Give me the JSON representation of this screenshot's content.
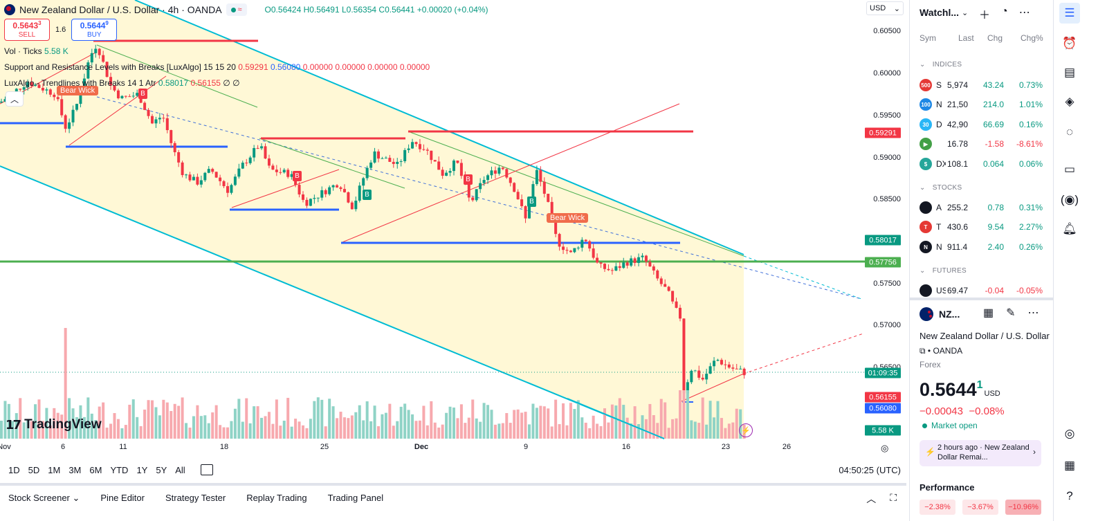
{
  "header": {
    "title": "New Zealand Dollar / U.S. Dollar · 4h · OANDA",
    "o": "O0.56424",
    "h": "H0.56491",
    "l": "L0.56354",
    "c": "C0.56441",
    "chg": "+0.00020 (+0.04%)"
  },
  "trade": {
    "sell_price": "0.5643",
    "sell_sup": "3",
    "sell_label": "SELL",
    "spread": "1.6",
    "buy_price": "0.5644",
    "buy_sup": "9",
    "buy_label": "BUY"
  },
  "indicators": {
    "vol_label": "Vol · Ticks",
    "vol_value": "5.58 K",
    "sr_label": "Support and Resistance Levels with Breaks [LuxAlgo]",
    "sr_params": "15 15 20",
    "sr_v1": "0.59291",
    "sr_v2": "0.56080",
    "sr_v3": "0.00000 0.00000 0.00000 0.00000",
    "tl_label": "LuxAlgo - Trendlines with Breaks",
    "tl_params": "14 1 Atr",
    "tl_v1": "0.58017",
    "tl_v2": "0.56155",
    "tl_v3": "∅ ∅"
  },
  "currency_select": "USD",
  "price_axis": [
    "0.60500",
    "0.60000",
    "0.59500",
    "0.59000",
    "0.58500",
    "0.58000",
    "0.57500",
    "0.57000",
    "0.56500"
  ],
  "price_tags": {
    "t1": "0.59291",
    "t2": "0.58017",
    "t3": "0.57756",
    "t4": "01:09:35",
    "t5": "0.56155",
    "t6": "0.56080",
    "t7": "5.58 K"
  },
  "time_axis": [
    "Nov",
    "6",
    "11",
    "18",
    "25",
    "Dec",
    "9",
    "16",
    "23",
    "26"
  ],
  "chart_labels": {
    "b": "B",
    "bear_wick": "Bear Wick"
  },
  "logo": "TradingView",
  "ranges": [
    "1D",
    "5D",
    "1M",
    "3M",
    "6M",
    "YTD",
    "1Y",
    "5Y",
    "All"
  ],
  "clock": "04:50:25 (UTC)",
  "bottom_tabs": [
    "Stock Screener",
    "Pine Editor",
    "Strategy Tester",
    "Replay Trading",
    "Trading Panel"
  ],
  "watchlist": {
    "title": "Watchl...",
    "cols": {
      "sym": "Sym",
      "last": "Last",
      "chg": "Chg",
      "chgp": "Chg%"
    },
    "sections": {
      "indices": "INDICES",
      "stocks": "STOCKS",
      "futures": "FUTURES"
    },
    "rows": [
      {
        "icon": "500",
        "color": "#e53935",
        "sym": "S",
        "last": "5,974",
        "chg": "43.24",
        "chgp": "0.73%",
        "dir": "pos"
      },
      {
        "icon": "100",
        "color": "#1e88e5",
        "sym": "N",
        "last": "21,50",
        "chg": "214.0",
        "chgp": "1.01%",
        "dir": "pos"
      },
      {
        "icon": "30",
        "color": "#29b6f6",
        "sym": "D",
        "last": "42,90",
        "chg": "66.69",
        "chgp": "0.16%",
        "dir": "pos"
      },
      {
        "icon": "▶",
        "color": "#43a047",
        "sym": "",
        "last": "16.78",
        "chg": "-1.58",
        "chgp": "-8.61%",
        "dir": "neg"
      },
      {
        "icon": "$",
        "color": "#26a69a",
        "sym": "DX",
        "last": "108.1",
        "chg": "0.064",
        "chgp": "0.06%",
        "dir": "pos"
      },
      {
        "icon": "",
        "color": "#131722",
        "sym": "A",
        "last": "255.2",
        "chg": "0.78",
        "chgp": "0.31%",
        "dir": "pos"
      },
      {
        "icon": "T",
        "color": "#e53935",
        "sym": "T",
        "last": "430.6",
        "chg": "9.54",
        "chgp": "2.27%",
        "dir": "pos"
      },
      {
        "icon": "N",
        "color": "#131722",
        "sym": "N",
        "last": "911.4",
        "chg": "2.40",
        "chgp": "0.26%",
        "dir": "pos"
      },
      {
        "icon": "",
        "color": "#131722",
        "sym": "US",
        "last": "69.47",
        "chg": "-0.04",
        "chgp": "-0.05%",
        "dir": "neg"
      }
    ]
  },
  "details": {
    "sym": "NZ...",
    "name": "New Zealand Dollar / U.S. Dollar",
    "exchange": "OANDA",
    "type": "Forex",
    "price": "0.5644",
    "price_sup": "1",
    "currency": "USD",
    "change": "−0.00043",
    "change_pct": "−0.08%",
    "market": "Market open",
    "news": "2 hours ago · New Zealand Dollar Remai...",
    "perf_title": "Performance",
    "perf": [
      "−2.38%",
      "−3.67%",
      "−10.96%"
    ]
  },
  "colors": {
    "up": "#089981",
    "down": "#f23645",
    "accent": "#2962ff",
    "channel": "#00bcd4",
    "support": "#4caf50"
  }
}
